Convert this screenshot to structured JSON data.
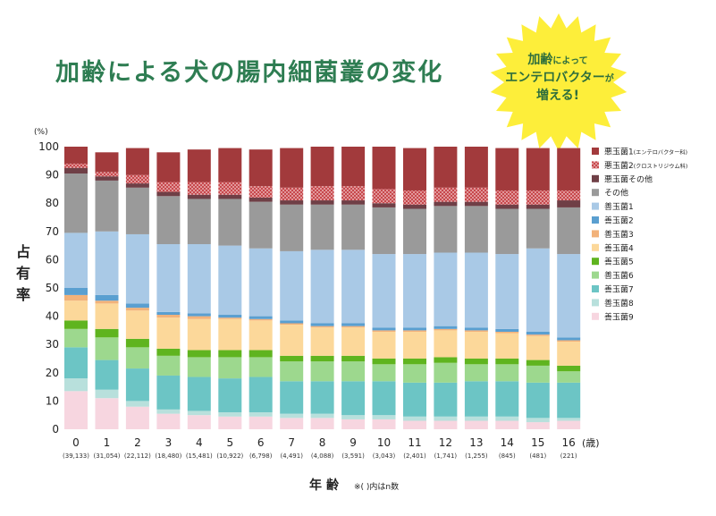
{
  "colors": {
    "title": "#2e7d52",
    "burst": "#fdee3a",
    "burst_text": "#2e6e3c",
    "axis_text": "#222222",
    "series": [
      "#a23a3c",
      "#c7484c",
      "#6f3f46",
      "#9a9a9a",
      "#a9c9e6",
      "#5a9fd0",
      "#f2b27a",
      "#fcd89a",
      "#5fb41f",
      "#9dd88e",
      "#6cc5c5",
      "#b8e0dc",
      "#f7d6e0"
    ]
  },
  "title": {
    "text": "加齢による犬の腸内細菌叢の変化"
  },
  "callout": {
    "line1_big": "加齢",
    "line1_small": "によって",
    "line2_big": "エンテロバクター",
    "line2_small": "が",
    "line3_big": "増える!"
  },
  "chart_data": {
    "type": "bar",
    "stacked": true,
    "unit_label": "(%)",
    "ylabel": "占有率",
    "xlabel": "年齢",
    "x_unit_label": "(歳)",
    "n_note": "※( )内はn数",
    "ylim": [
      0,
      100
    ],
    "yticks": [
      0,
      10,
      20,
      30,
      40,
      50,
      60,
      70,
      80,
      90,
      100
    ],
    "grid": false,
    "legend_position": "right",
    "categories": [
      "0",
      "1",
      "2",
      "3",
      "4",
      "5",
      "6",
      "7",
      "8",
      "9",
      "10",
      "11",
      "12",
      "13",
      "14",
      "15",
      "16"
    ],
    "n_labels": [
      "(39,133)",
      "(31,054)",
      "(22,112)",
      "(18,480)",
      "(15,481)",
      "(10,922)",
      "(6,798)",
      "(4,491)",
      "(4,088)",
      "(3,591)",
      "(3,043)",
      "(2,401)",
      "(1,741)",
      "(1,255)",
      "(845)",
      "(481)",
      "(221)"
    ],
    "series": [
      {
        "name": "善玉菌9",
        "values": [
          13.5,
          11,
          8,
          5.5,
          5,
          4.5,
          4.5,
          4,
          4,
          3.5,
          3.5,
          3,
          3,
          3,
          3,
          2.5,
          3
        ]
      },
      {
        "name": "善玉菌8",
        "values": [
          4.5,
          3,
          2,
          1.5,
          1.5,
          1.5,
          1.5,
          1.5,
          1.5,
          1.5,
          1.5,
          1.5,
          1.5,
          1.5,
          1.5,
          1.5,
          1
        ]
      },
      {
        "name": "善玉菌7",
        "values": [
          11,
          10.5,
          11.5,
          12,
          12,
          12,
          12.5,
          11.5,
          11.5,
          12,
          12,
          12,
          12,
          12.5,
          12.5,
          12.5,
          12.5
        ]
      },
      {
        "name": "善玉菌6",
        "values": [
          6.5,
          8,
          7.5,
          7,
          7,
          7.5,
          7,
          7,
          7,
          7,
          6,
          6.5,
          7,
          6,
          6,
          6,
          4
        ]
      },
      {
        "name": "善玉菌5",
        "values": [
          3,
          3,
          3,
          2.5,
          2.5,
          2.5,
          2.5,
          2,
          2,
          2,
          2,
          2,
          2,
          2,
          2,
          2,
          2
        ]
      },
      {
        "name": "善玉菌4",
        "values": [
          7,
          9,
          10,
          11,
          11,
          11,
          10.5,
          11,
          10,
          10,
          9.5,
          9.5,
          9.5,
          9.5,
          9,
          8.5,
          8.5
        ]
      },
      {
        "name": "善玉菌3",
        "values": [
          2,
          1,
          1,
          1,
          1,
          0.5,
          0.5,
          0.5,
          0.5,
          0.5,
          0.5,
          0.5,
          0.5,
          0.5,
          0.5,
          0.5,
          0.5
        ]
      },
      {
        "name": "善玉菌2",
        "values": [
          2.5,
          2,
          1.5,
          1,
          1,
          1,
          1,
          1,
          1,
          1,
          1,
          1,
          1,
          1,
          1,
          1,
          1
        ]
      },
      {
        "name": "善玉菌1",
        "values": [
          19.5,
          22.5,
          24.5,
          24,
          24.5,
          24.5,
          24,
          24.5,
          26,
          26,
          26,
          26,
          26,
          26.5,
          26.5,
          29.5,
          29.5
        ]
      },
      {
        "name": "その他",
        "values": [
          21,
          18,
          16.5,
          17,
          16,
          16.5,
          16.5,
          16.5,
          16,
          16,
          16.5,
          16,
          16.5,
          16.5,
          16,
          14,
          16.5
        ]
      },
      {
        "name": "悪玉菌その他",
        "values": [
          2,
          1.5,
          1.5,
          1.5,
          1.5,
          1.5,
          1.5,
          1.5,
          1.5,
          1.5,
          1.5,
          1.5,
          1.5,
          1.5,
          1.5,
          1.5,
          2.5
        ]
      },
      {
        "name": "悪玉菌2(クロストリジウム科)",
        "values": [
          1.5,
          1.5,
          3,
          3.5,
          4.5,
          4.5,
          4,
          4.5,
          5,
          5,
          5,
          5,
          5,
          5,
          5,
          5,
          3.5
        ]
      },
      {
        "name": "悪玉菌1(エンテロバクター科)",
        "values": [
          6,
          7,
          9.5,
          10.5,
          11.5,
          12,
          13,
          14,
          14,
          14,
          15,
          15,
          14.5,
          14.5,
          15,
          15,
          15
        ]
      }
    ]
  },
  "legend": [
    {
      "main": "悪玉菌1",
      "sub": "(エンテロバクター科)"
    },
    {
      "main": "悪玉菌2",
      "sub": "(クロストリジウム科)"
    },
    {
      "main": "悪玉菌その他",
      "sub": ""
    },
    {
      "main": "その他",
      "sub": ""
    },
    {
      "main": "善玉菌1",
      "sub": ""
    },
    {
      "main": "善玉菌2",
      "sub": ""
    },
    {
      "main": "善玉菌3",
      "sub": ""
    },
    {
      "main": "善玉菌4",
      "sub": ""
    },
    {
      "main": "善玉菌5",
      "sub": ""
    },
    {
      "main": "善玉菌6",
      "sub": ""
    },
    {
      "main": "善玉菌7",
      "sub": ""
    },
    {
      "main": "善玉菌8",
      "sub": ""
    },
    {
      "main": "善玉菌9",
      "sub": ""
    }
  ]
}
